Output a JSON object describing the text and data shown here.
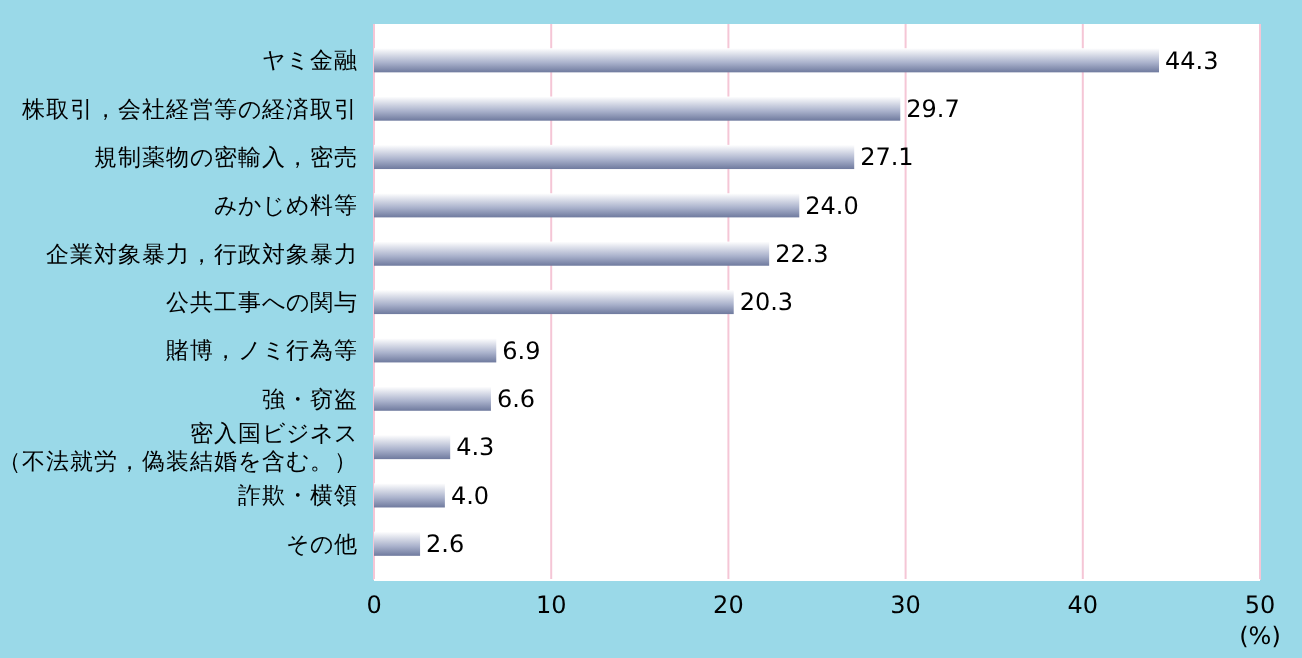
{
  "chart_data": {
    "type": "bar",
    "orientation": "horizontal",
    "categories": [
      "ヤミ金融",
      "株取引，会社経営等の経済取引",
      "規制薬物の密輸入，密売",
      "みかじめ料等",
      "企業対象暴力，行政対象暴力",
      "公共工事への関与",
      "賭博，ノミ行為等",
      "強・窃盗",
      "密入国ビジネス（不法就労，偽装結婚を含む。）",
      "詐欺・横領",
      "その他"
    ],
    "values": [
      44.3,
      29.7,
      27.1,
      24.0,
      22.3,
      20.3,
      6.9,
      6.6,
      4.3,
      4.0,
      2.6
    ],
    "value_labels": [
      "44.3",
      "29.7",
      "27.1",
      "24.0",
      "22.3",
      "20.3",
      "6.9",
      "6.6",
      "4.3",
      "4.0",
      "2.6"
    ],
    "color": "#aab2cc",
    "xlim": [
      0,
      50
    ],
    "xticks": [
      0,
      10,
      20,
      30,
      40,
      50
    ],
    "xlabel": "(%)",
    "grid": "x"
  }
}
